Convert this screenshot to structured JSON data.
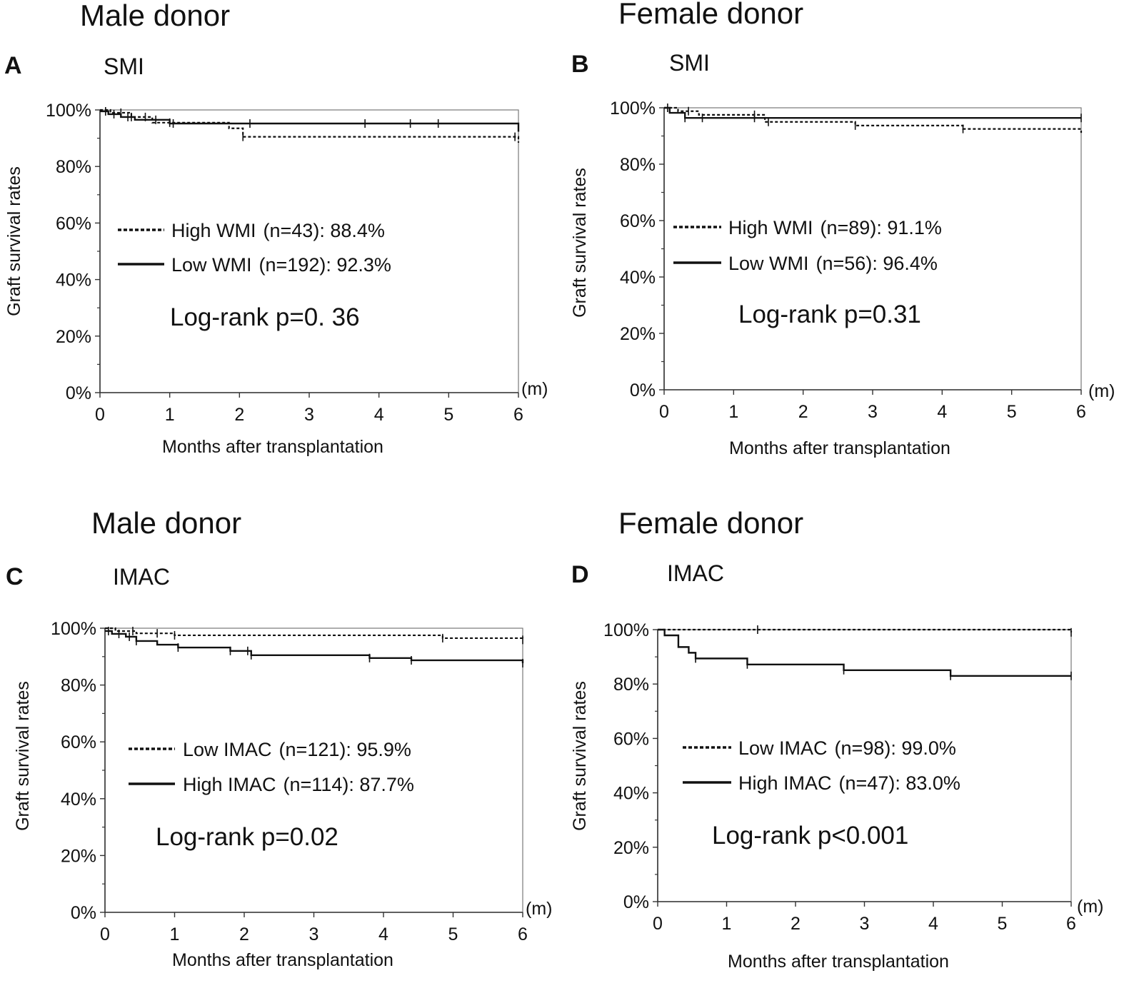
{
  "chart_data": [
    {
      "type": "line",
      "panel": "A",
      "group_title": "Male donor",
      "title": "SMI",
      "xlabel": "Months after transplantation",
      "ylabel": "Graft survival rates",
      "x_unit": "(m)",
      "xlim": [
        0,
        6
      ],
      "ylim": [
        0,
        100
      ],
      "x_ticks": [
        0,
        1,
        2,
        3,
        4,
        5,
        6
      ],
      "y_ticks": [
        0,
        20,
        40,
        60,
        80,
        100
      ],
      "y_tick_labels": [
        "0%",
        "20%",
        "40%",
        "60%",
        "80%",
        "100%"
      ],
      "log_rank": "Log-rank p=0. 36",
      "series": [
        {
          "name": "High WMI (n=43): 88.4%",
          "style": "dotted",
          "x": [
            0,
            0.15,
            0.45,
            0.75,
            1.85,
            2.05,
            6.0
          ],
          "y": [
            100,
            99.0,
            97.5,
            95.5,
            93.5,
            90.5,
            88.4
          ],
          "censor_x": [
            0.3,
            0.65,
            1.0,
            2.05,
            5.95
          ],
          "legend_label": "High WMI",
          "legend_n": "(n=43): 88.4%"
        },
        {
          "name": "Low WMI (n=192): 92.3%",
          "style": "solid",
          "x": [
            0,
            0.12,
            0.3,
            0.5,
            1.0,
            6.0
          ],
          "y": [
            99.5,
            98.5,
            97.5,
            96.5,
            95.2,
            92.3
          ],
          "censor_x": [
            0.08,
            0.2,
            0.4,
            0.45,
            0.8,
            1.05,
            2.15,
            3.8,
            4.45,
            4.85
          ],
          "legend_label": "Low WMI",
          "legend_n": "(n=192): 92.3%"
        }
      ]
    },
    {
      "type": "line",
      "panel": "B",
      "group_title": "Female donor",
      "title": "SMI",
      "xlabel": "Months after transplantation",
      "ylabel": "Graft survival rates",
      "x_unit": "(m)",
      "xlim": [
        0,
        6
      ],
      "ylim": [
        0,
        100
      ],
      "x_ticks": [
        0,
        1,
        2,
        3,
        4,
        5,
        6
      ],
      "y_ticks": [
        0,
        20,
        40,
        60,
        80,
        100
      ],
      "y_tick_labels": [
        "0%",
        "20%",
        "40%",
        "60%",
        "80%",
        "100%"
      ],
      "log_rank": "Log-rank p=0.31",
      "series": [
        {
          "name": "High WMI (n=89): 91.1%",
          "style": "dotted",
          "x": [
            0,
            0.2,
            0.5,
            1.45,
            2.75,
            4.3,
            6.0
          ],
          "y": [
            100,
            98.8,
            97.5,
            95.0,
            93.7,
            92.5,
            91.1
          ],
          "censor_x": [
            0.35,
            1.3,
            1.5,
            2.75,
            4.3
          ],
          "legend_label": "High WMI",
          "legend_n": "(n=89): 91.1%"
        },
        {
          "name": "Low WMI (n=56): 96.4%",
          "style": "solid",
          "x": [
            0,
            0.08,
            0.3,
            6.0
          ],
          "y": [
            100,
            98.2,
            96.4,
            96.4
          ],
          "censor_x": [
            0.05,
            0.3,
            0.55,
            1.3,
            6.0
          ],
          "legend_label": "Low WMI",
          "legend_n": "(n=56): 96.4%"
        }
      ]
    },
    {
      "type": "line",
      "panel": "C",
      "group_title": "Male donor",
      "title": "IMAC",
      "xlabel": "Months after transplantation",
      "ylabel": "Graft survival rates",
      "x_unit": "(m)",
      "xlim": [
        0,
        6
      ],
      "ylim": [
        0,
        100
      ],
      "x_ticks": [
        0,
        1,
        2,
        3,
        4,
        5,
        6
      ],
      "y_ticks": [
        0,
        20,
        40,
        60,
        80,
        100
      ],
      "y_tick_labels": [
        "0%",
        "20%",
        "40%",
        "60%",
        "80%",
        "100%"
      ],
      "log_rank": "Log-rank p=0.02",
      "series": [
        {
          "name": "Low IMAC (n=121): 95.9%",
          "style": "dotted",
          "x": [
            0,
            0.15,
            0.45,
            1.0,
            4.85,
            6.0
          ],
          "y": [
            100,
            99.0,
            98.2,
            97.5,
            96.5,
            95.9
          ],
          "censor_x": [
            0.4,
            0.75,
            1.0,
            4.85,
            6.0
          ],
          "legend_label": "Low  IMAC",
          "legend_n": "(n=121): 95.9%"
        },
        {
          "name": "High IMAC (n=114): 87.7%",
          "style": "solid",
          "x": [
            0,
            0.1,
            0.3,
            0.45,
            0.75,
            1.05,
            1.8,
            2.1,
            3.8,
            4.4,
            6.0
          ],
          "y": [
            99,
            98,
            97,
            95.5,
            94.2,
            93.2,
            92.0,
            90.5,
            89.5,
            88.7,
            87.7
          ],
          "censor_x": [
            0.05,
            0.2,
            0.35,
            0.45,
            1.05,
            1.8,
            2.05,
            2.1,
            3.8,
            4.4,
            6.0
          ],
          "legend_label": "High IMAC",
          "legend_n": "(n=114): 87.7%"
        }
      ]
    },
    {
      "type": "line",
      "panel": "D",
      "group_title": "Female donor",
      "title": "IMAC",
      "xlabel": "Months after transplantation",
      "ylabel": "Graft survival rates",
      "x_unit": "(m)",
      "xlim": [
        0,
        6
      ],
      "ylim": [
        0,
        100
      ],
      "x_ticks": [
        0,
        1,
        2,
        3,
        4,
        5,
        6
      ],
      "y_ticks": [
        0,
        20,
        40,
        60,
        80,
        100
      ],
      "y_tick_labels": [
        "0%",
        "20%",
        "40%",
        "60%",
        "80%",
        "100%"
      ],
      "log_rank": "Log-rank p<0.001",
      "series": [
        {
          "name": "Low IMAC (n=98): 99.0%",
          "style": "dotted",
          "x": [
            0,
            6.0
          ],
          "y": [
            100,
            99.0
          ],
          "censor_x": [
            1.45,
            6.0
          ],
          "legend_label": "Low  IMAC",
          "legend_n": "(n=98): 99.0%"
        },
        {
          "name": "High IMAC (n=47): 83.0%",
          "style": "solid",
          "x": [
            0,
            0.1,
            0.3,
            0.45,
            0.55,
            1.3,
            2.7,
            4.25,
            6.0
          ],
          "y": [
            100,
            97.9,
            93.6,
            91.5,
            89.4,
            87.2,
            85.1,
            83.0,
            83.0
          ],
          "censor_x": [
            0.55,
            1.3,
            2.7,
            4.25,
            6.0
          ],
          "legend_label": "High IMAC",
          "legend_n": "(n=47): 83.0%"
        }
      ]
    }
  ]
}
